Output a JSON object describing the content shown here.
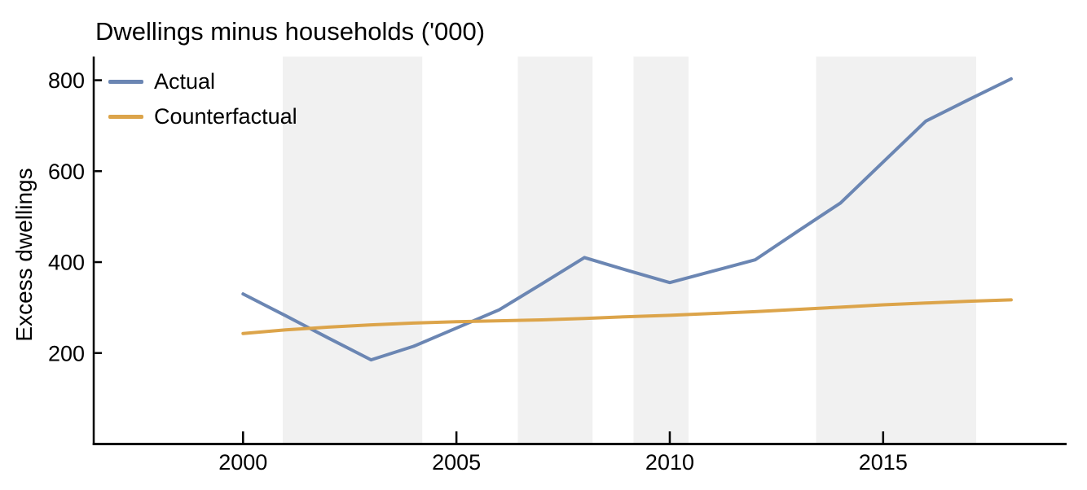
{
  "chart_data": {
    "type": "line",
    "title": "Dwellings minus households ('000)",
    "xlabel": "",
    "ylabel": "Excess dwellings",
    "x": [
      2000,
      2001,
      2002,
      2003,
      2004,
      2005,
      2006,
      2007,
      2008,
      2009,
      2010,
      2011,
      2012,
      2013,
      2014,
      2015,
      2016,
      2017,
      2018
    ],
    "series": [
      {
        "name": "Actual",
        "color": "#6b86b3",
        "values": [
          330,
          282,
          233,
          185,
          215,
          255,
          295,
          352,
          410,
          382,
          355,
          380,
          405,
          468,
          530,
          620,
          710,
          757,
          803
        ]
      },
      {
        "name": "Counterfactual",
        "color": "#dca44a",
        "values": [
          243,
          251,
          257,
          262,
          266,
          269,
          271,
          273,
          276,
          280,
          283,
          287,
          291,
          296,
          301,
          306,
          310,
          314,
          317
        ]
      }
    ],
    "x_ticks": [
      2000,
      2005,
      2010,
      2015
    ],
    "y_ticks": [
      200,
      400,
      600,
      800
    ],
    "xlim": [
      1996.5,
      2019.3
    ],
    "ylim": [
      0,
      852
    ],
    "grid": false,
    "legend_position": "top-left",
    "shaded_bands": [
      {
        "from": 2000.93,
        "to": 2004.2
      },
      {
        "from": 2006.44,
        "to": 2008.19
      },
      {
        "from": 2009.15,
        "to": 2010.44
      },
      {
        "from": 2013.43,
        "to": 2017.18
      }
    ],
    "band_color": "#f1f1f1",
    "axis_color": "#000000"
  }
}
